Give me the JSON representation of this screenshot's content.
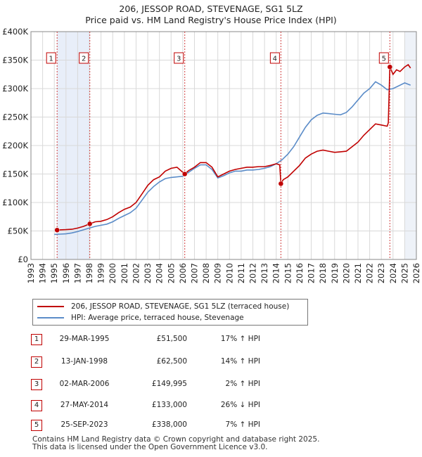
{
  "title_line1": "206, JESSOP ROAD, STEVENAGE, SG1 5LZ",
  "title_line2": "Price paid vs. HM Land Registry's House Price Index (HPI)",
  "chart_data": {
    "type": "line",
    "title": "206, JESSOP ROAD, STEVENAGE, SG1 5LZ — Price paid vs. HM Land Registry's House Price Index (HPI)",
    "xlabel": "",
    "ylabel": "",
    "xlim": [
      1993,
      2026
    ],
    "ylim": [
      0,
      400000
    ],
    "y_ticks": [
      {
        "value": 0,
        "label": "£0"
      },
      {
        "value": 50000,
        "label": "£50K"
      },
      {
        "value": 100000,
        "label": "£100K"
      },
      {
        "value": 150000,
        "label": "£150K"
      },
      {
        "value": 200000,
        "label": "£200K"
      },
      {
        "value": 250000,
        "label": "£250K"
      },
      {
        "value": 300000,
        "label": "£300K"
      },
      {
        "value": 350000,
        "label": "£350K"
      },
      {
        "value": 400000,
        "label": "£400K"
      }
    ],
    "x_ticks": [
      "1993",
      "1994",
      "1995",
      "1996",
      "1997",
      "1998",
      "1999",
      "2000",
      "2001",
      "2002",
      "2003",
      "2004",
      "2005",
      "2006",
      "2007",
      "2008",
      "2009",
      "2010",
      "2011",
      "2012",
      "2013",
      "2014",
      "2015",
      "2016",
      "2017",
      "2018",
      "2019",
      "2020",
      "2021",
      "2022",
      "2023",
      "2024",
      "2025",
      "2026"
    ],
    "grid": true,
    "shaded_periods": [
      [
        1995.24,
        1998.04
      ],
      [
        2014.4,
        2014.4
      ],
      [
        2025.0,
        2026.0
      ]
    ],
    "series": [
      {
        "name": "206, JESSOP ROAD, STEVENAGE, SG1 5LZ (terraced house)",
        "color": "#c00000",
        "points": [
          [
            1995.24,
            51500
          ],
          [
            1995.5,
            52000
          ],
          [
            1996.0,
            52300
          ],
          [
            1996.5,
            53000
          ],
          [
            1997.0,
            55000
          ],
          [
            1997.5,
            58000
          ],
          [
            1998.04,
            62500
          ],
          [
            1998.5,
            66000
          ],
          [
            1999.0,
            67000
          ],
          [
            1999.5,
            70000
          ],
          [
            2000.0,
            75000
          ],
          [
            2000.5,
            82000
          ],
          [
            2001.0,
            88000
          ],
          [
            2001.5,
            92000
          ],
          [
            2002.0,
            100000
          ],
          [
            2002.5,
            115000
          ],
          [
            2003.0,
            130000
          ],
          [
            2003.5,
            140000
          ],
          [
            2004.0,
            145000
          ],
          [
            2004.5,
            155000
          ],
          [
            2005.0,
            160000
          ],
          [
            2005.5,
            162000
          ],
          [
            2006.17,
            149995
          ],
          [
            2006.5,
            156000
          ],
          [
            2007.0,
            162000
          ],
          [
            2007.5,
            170000
          ],
          [
            2008.0,
            170000
          ],
          [
            2008.5,
            162000
          ],
          [
            2009.0,
            145000
          ],
          [
            2009.5,
            150000
          ],
          [
            2010.0,
            155000
          ],
          [
            2010.5,
            158000
          ],
          [
            2011.0,
            160000
          ],
          [
            2011.5,
            162000
          ],
          [
            2012.0,
            162000
          ],
          [
            2012.5,
            163000
          ],
          [
            2013.0,
            163000
          ],
          [
            2013.5,
            165000
          ],
          [
            2014.0,
            168000
          ],
          [
            2014.3,
            166000
          ],
          [
            2014.4,
            133000
          ],
          [
            2014.6,
            140000
          ],
          [
            2015.0,
            145000
          ],
          [
            2015.5,
            155000
          ],
          [
            2016.0,
            165000
          ],
          [
            2016.5,
            178000
          ],
          [
            2017.0,
            185000
          ],
          [
            2017.5,
            190000
          ],
          [
            2018.0,
            192000
          ],
          [
            2018.5,
            190000
          ],
          [
            2019.0,
            188000
          ],
          [
            2019.5,
            189000
          ],
          [
            2020.0,
            190000
          ],
          [
            2020.5,
            198000
          ],
          [
            2021.0,
            206000
          ],
          [
            2021.5,
            218000
          ],
          [
            2022.0,
            228000
          ],
          [
            2022.5,
            238000
          ],
          [
            2023.0,
            236000
          ],
          [
            2023.5,
            234000
          ],
          [
            2023.6,
            240000
          ],
          [
            2023.73,
            338000
          ],
          [
            2024.0,
            325000
          ],
          [
            2024.3,
            333000
          ],
          [
            2024.6,
            330000
          ],
          [
            2025.0,
            338000
          ],
          [
            2025.3,
            342000
          ],
          [
            2025.5,
            336000
          ]
        ]
      },
      {
        "name": "HPI: Average price, terraced house, Stevenage",
        "color": "#5b8cc8",
        "points": [
          [
            1995.0,
            44000
          ],
          [
            1995.5,
            44500
          ],
          [
            1996.0,
            45000
          ],
          [
            1996.5,
            46500
          ],
          [
            1997.0,
            49000
          ],
          [
            1997.5,
            52000
          ],
          [
            1998.0,
            55000
          ],
          [
            1998.5,
            58000
          ],
          [
            1999.0,
            60000
          ],
          [
            1999.5,
            62000
          ],
          [
            2000.0,
            66000
          ],
          [
            2000.5,
            72000
          ],
          [
            2001.0,
            77000
          ],
          [
            2001.5,
            82000
          ],
          [
            2002.0,
            90000
          ],
          [
            2002.5,
            104000
          ],
          [
            2003.0,
            118000
          ],
          [
            2003.5,
            128000
          ],
          [
            2004.0,
            136000
          ],
          [
            2004.5,
            142000
          ],
          [
            2005.0,
            144000
          ],
          [
            2005.5,
            145000
          ],
          [
            2006.0,
            146000
          ],
          [
            2006.5,
            153000
          ],
          [
            2007.0,
            160000
          ],
          [
            2007.5,
            166000
          ],
          [
            2008.0,
            166000
          ],
          [
            2008.5,
            158000
          ],
          [
            2009.0,
            143000
          ],
          [
            2009.5,
            147000
          ],
          [
            2010.0,
            152000
          ],
          [
            2010.5,
            155000
          ],
          [
            2011.0,
            155000
          ],
          [
            2011.5,
            157000
          ],
          [
            2012.0,
            157000
          ],
          [
            2012.5,
            158000
          ],
          [
            2013.0,
            160000
          ],
          [
            2013.5,
            163000
          ],
          [
            2014.0,
            168000
          ],
          [
            2014.5,
            175000
          ],
          [
            2015.0,
            185000
          ],
          [
            2015.5,
            198000
          ],
          [
            2016.0,
            215000
          ],
          [
            2016.5,
            232000
          ],
          [
            2017.0,
            245000
          ],
          [
            2017.5,
            253000
          ],
          [
            2018.0,
            257000
          ],
          [
            2018.5,
            256000
          ],
          [
            2019.0,
            255000
          ],
          [
            2019.5,
            254000
          ],
          [
            2020.0,
            258000
          ],
          [
            2020.5,
            268000
          ],
          [
            2021.0,
            280000
          ],
          [
            2021.5,
            292000
          ],
          [
            2022.0,
            300000
          ],
          [
            2022.5,
            312000
          ],
          [
            2023.0,
            306000
          ],
          [
            2023.5,
            298000
          ],
          [
            2024.0,
            300000
          ],
          [
            2024.5,
            305000
          ],
          [
            2025.0,
            310000
          ],
          [
            2025.5,
            306000
          ]
        ]
      }
    ],
    "sales": [
      {
        "label": "1",
        "year": 1995.24,
        "price": 51500
      },
      {
        "label": "2",
        "year": 1998.04,
        "price": 62500
      },
      {
        "label": "3",
        "year": 2006.17,
        "price": 149995
      },
      {
        "label": "4",
        "year": 2014.4,
        "price": 133000
      },
      {
        "label": "5",
        "year": 2023.73,
        "price": 338000
      }
    ]
  },
  "legend": {
    "property": "206, JESSOP ROAD, STEVENAGE, SG1 5LZ (terraced house)",
    "hpi": "HPI: Average price, terraced house, Stevenage"
  },
  "colors": {
    "property": "#c00000",
    "hpi": "#5b8cc8",
    "shade": "#e8eef9",
    "grid": "#d9d9d9"
  },
  "transactions": [
    {
      "num": "1",
      "date": "29-MAR-1995",
      "price": "£51,500",
      "hpi": "17% ↑ HPI"
    },
    {
      "num": "2",
      "date": "13-JAN-1998",
      "price": "£62,500",
      "hpi": "14% ↑ HPI"
    },
    {
      "num": "3",
      "date": "02-MAR-2006",
      "price": "£149,995",
      "hpi": "2% ↑ HPI"
    },
    {
      "num": "4",
      "date": "27-MAY-2014",
      "price": "£133,000",
      "hpi": "26% ↓ HPI"
    },
    {
      "num": "5",
      "date": "25-SEP-2023",
      "price": "£338,000",
      "hpi": "7% ↑ HPI"
    }
  ],
  "footer": {
    "line1": "Contains HM Land Registry data © Crown copyright and database right 2025.",
    "line2": "This data is licensed under the Open Government Licence v3.0."
  }
}
